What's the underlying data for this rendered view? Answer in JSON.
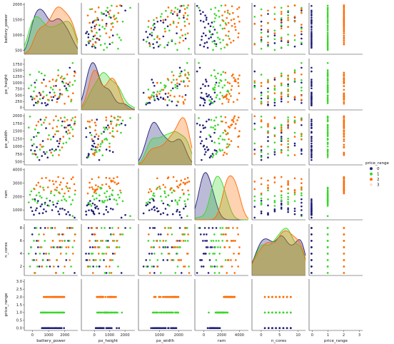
{
  "chart_data": {
    "type": "scatter",
    "subtype": "pairplot",
    "variables": [
      "battery_power",
      "px_height",
      "px_width",
      "ram",
      "n_cores",
      "price_range"
    ],
    "ticks": {
      "battery_power": {
        "values": [
          500,
          1000,
          1500,
          2000
        ],
        "labels": [
          "500",
          "1000",
          "1500",
          "2000"
        ],
        "lim": [
          380,
          2050
        ]
      },
      "px_height": {
        "values": [
          0,
          250,
          500,
          750,
          1000,
          1250,
          1500,
          1750
        ],
        "labels": [
          "0",
          "250",
          "500",
          "750",
          "1000",
          "1250",
          "1500",
          "1750"
        ],
        "lim": [
          -90,
          1980
        ]
      },
      "px_width": {
        "values": [
          500,
          750,
          1000,
          1250,
          1500,
          1750,
          2000
        ],
        "labels": [
          "500",
          "750",
          "1000",
          "1250",
          "1500",
          "1750",
          "2000"
        ],
        "lim": [
          400,
          2080
        ]
      },
      "ram": {
        "values": [
          1000,
          2000,
          3000,
          4000
        ],
        "labels": [
          "1000",
          "2000",
          "3000",
          "4000"
        ],
        "lim": [
          280,
          4100
        ]
      },
      "n_cores": {
        "values": [
          2,
          4,
          6,
          8
        ],
        "labels": [
          "2",
          "4",
          "6",
          "8"
        ],
        "lim": [
          0.6,
          8.6
        ]
      },
      "price_range": {
        "values": [
          0.0,
          0.5,
          1.0,
          1.5,
          2.0,
          2.5,
          3.0
        ],
        "labels": [
          "0.0",
          "0.5",
          "1.0",
          "1.5",
          "2.0",
          "2.5",
          "3.0"
        ],
        "lim": [
          -0.15,
          3.15
        ]
      }
    },
    "bottom_ticks": {
      "battery_power": {
        "values": [
          0,
          1000,
          2000
        ],
        "labels": [
          "0",
          "1000",
          "2000"
        ],
        "lim": [
          -500,
          2800
        ]
      },
      "px_height": {
        "values": [
          0,
          1000,
          2000
        ],
        "labels": [
          "0",
          "1000",
          "2000"
        ],
        "lim": [
          -850,
          2650
        ]
      },
      "px_width": {
        "values": [
          1000,
          2000
        ],
        "labels": [
          "1000",
          "2000"
        ],
        "lim": [
          -100,
          2700
        ]
      },
      "ram": {
        "values": [
          0,
          2000,
          4000
        ],
        "labels": [
          "0",
          "2000",
          "4000"
        ],
        "lim": [
          -1000,
          5000
        ]
      },
      "n_cores": {
        "values": [
          0,
          5,
          10
        ],
        "labels": [
          "0",
          "5",
          "10"
        ],
        "lim": [
          -2.5,
          12
        ]
      },
      "price_range": {
        "values": [
          0,
          1,
          2,
          3
        ],
        "labels": [
          "0",
          "1",
          "2",
          "3"
        ],
        "lim": [
          -0.2,
          3.2
        ]
      }
    },
    "hue": "price_range",
    "legend": {
      "title": "price_range",
      "entries": [
        "0",
        "1",
        "2",
        "3"
      ],
      "placement": "right"
    },
    "colors": {
      "0": "#1f1f7a",
      "1": "#3ad62a",
      "2": "#ff6a00",
      "3": "#ffe0d0"
    },
    "records": [
      [
        1950,
        1460,
        1750,
        440,
        1,
        0
      ],
      [
        1890,
        1800,
        1930,
        560,
        8,
        1
      ],
      [
        1800,
        1610,
        1700,
        640,
        8,
        0
      ],
      [
        1750,
        940,
        1690,
        860,
        6,
        0
      ],
      [
        1690,
        780,
        1480,
        700,
        3,
        0
      ],
      [
        1640,
        870,
        1620,
        1020,
        6,
        0
      ],
      [
        1570,
        1050,
        1820,
        1110,
        7,
        0
      ],
      [
        1500,
        560,
        1250,
        1100,
        5,
        0
      ],
      [
        1470,
        410,
        1100,
        700,
        7,
        0
      ],
      [
        1440,
        370,
        1000,
        900,
        2,
        0
      ],
      [
        1410,
        350,
        1180,
        1500,
        5,
        0
      ],
      [
        1370,
        880,
        900,
        1250,
        1,
        0
      ],
      [
        1290,
        430,
        1320,
        1400,
        5,
        0
      ],
      [
        1250,
        300,
        910,
        1000,
        8,
        0
      ],
      [
        1180,
        610,
        880,
        1700,
        2,
        0
      ],
      [
        1110,
        130,
        640,
        1350,
        3,
        0
      ],
      [
        1060,
        90,
        1600,
        900,
        4,
        0
      ],
      [
        1030,
        190,
        760,
        1550,
        8,
        0
      ],
      [
        990,
        1130,
        820,
        1060,
        4,
        0
      ],
      [
        960,
        380,
        1180,
        780,
        3,
        0
      ],
      [
        930,
        180,
        690,
        1430,
        2,
        0
      ],
      [
        890,
        510,
        1880,
        1280,
        8,
        0
      ],
      [
        850,
        600,
        560,
        760,
        2,
        0
      ],
      [
        810,
        250,
        1450,
        1680,
        5,
        0
      ],
      [
        770,
        460,
        980,
        1140,
        6,
        0
      ],
      [
        740,
        200,
        740,
        990,
        4,
        0
      ],
      [
        710,
        1010,
        860,
        1810,
        8,
        0
      ],
      [
        680,
        100,
        1310,
        660,
        3,
        0
      ],
      [
        630,
        330,
        1030,
        930,
        7,
        0
      ],
      [
        590,
        450,
        880,
        1200,
        5,
        0
      ],
      [
        1960,
        1080,
        1820,
        2170,
        7,
        1
      ],
      [
        1890,
        920,
        1560,
        1740,
        5,
        1
      ],
      [
        1840,
        250,
        1630,
        1430,
        2,
        1
      ],
      [
        1790,
        870,
        1260,
        1980,
        6,
        1
      ],
      [
        1730,
        690,
        1420,
        2630,
        8,
        1
      ],
      [
        1690,
        720,
        1130,
        1690,
        4,
        1
      ],
      [
        1640,
        1180,
        1950,
        1800,
        6,
        1
      ],
      [
        1600,
        1000,
        1100,
        2020,
        1,
        1
      ],
      [
        1550,
        1260,
        1680,
        1730,
        5,
        1
      ],
      [
        1490,
        480,
        880,
        2250,
        6,
        1
      ],
      [
        1440,
        1510,
        1850,
        1670,
        7,
        1
      ],
      [
        1390,
        1120,
        1500,
        2470,
        3,
        1
      ],
      [
        1320,
        610,
        860,
        2100,
        5,
        1
      ],
      [
        1270,
        730,
        710,
        1600,
        6,
        1
      ],
      [
        1210,
        810,
        1230,
        2260,
        8,
        1
      ],
      [
        1150,
        300,
        1370,
        1320,
        4,
        1
      ],
      [
        1080,
        500,
        820,
        1870,
        2,
        1
      ],
      [
        1020,
        1300,
        1870,
        1450,
        6,
        1
      ],
      [
        970,
        640,
        1000,
        2670,
        3,
        1
      ],
      [
        920,
        1380,
        1710,
        1930,
        5,
        1
      ],
      [
        870,
        350,
        900,
        2050,
        4,
        1
      ],
      [
        840,
        1440,
        1450,
        2300,
        7,
        1
      ],
      [
        790,
        180,
        650,
        1540,
        2,
        1
      ],
      [
        760,
        1110,
        1340,
        2100,
        8,
        1
      ],
      [
        720,
        820,
        1560,
        1700,
        1,
        1
      ],
      [
        680,
        660,
        1080,
        2600,
        6,
        1
      ],
      [
        640,
        410,
        760,
        1800,
        3,
        1
      ],
      [
        600,
        900,
        1220,
        2400,
        5,
        1
      ],
      [
        560,
        1330,
        1980,
        2150,
        2,
        1
      ],
      [
        520,
        780,
        1620,
        1580,
        4,
        1
      ],
      [
        1970,
        1410,
        1960,
        2460,
        7,
        2
      ],
      [
        1940,
        1280,
        1720,
        2930,
        6,
        2
      ],
      [
        1900,
        580,
        1340,
        3440,
        4,
        2
      ],
      [
        1850,
        320,
        1860,
        3310,
        8,
        2
      ],
      [
        1800,
        1020,
        1440,
        2630,
        3,
        2
      ],
      [
        1760,
        450,
        1530,
        2420,
        5,
        2
      ],
      [
        1720,
        1340,
        1870,
        3000,
        8,
        2
      ],
      [
        1690,
        980,
        1620,
        2760,
        5,
        2
      ],
      [
        1640,
        160,
        1820,
        2240,
        2,
        2
      ],
      [
        1600,
        1160,
        1320,
        3370,
        7,
        2
      ],
      [
        1560,
        530,
        970,
        2560,
        6,
        2
      ],
      [
        1520,
        1200,
        1930,
        3060,
        4,
        2
      ],
      [
        1490,
        720,
        1180,
        2880,
        6,
        2
      ],
      [
        1460,
        410,
        720,
        2320,
        7,
        2
      ],
      [
        1440,
        1300,
        1500,
        3460,
        5,
        2
      ],
      [
        1400,
        230,
        1650,
        2680,
        3,
        2
      ],
      [
        1370,
        1070,
        1990,
        3120,
        1,
        2
      ],
      [
        1340,
        490,
        1400,
        2520,
        8,
        2
      ],
      [
        1300,
        870,
        1860,
        2930,
        2,
        2
      ],
      [
        1270,
        1130,
        1600,
        3160,
        6,
        2
      ],
      [
        1220,
        430,
        800,
        2400,
        5,
        2
      ],
      [
        1170,
        1060,
        1740,
        3200,
        3,
        2
      ],
      [
        1120,
        320,
        1240,
        2700,
        8,
        2
      ],
      [
        1060,
        870,
        1950,
        3400,
        4,
        2
      ],
      [
        990,
        440,
        1780,
        2500,
        7,
        2
      ],
      [
        930,
        1000,
        990,
        3370,
        2,
        2
      ],
      [
        880,
        560,
        1060,
        2750,
        5,
        2
      ],
      [
        820,
        230,
        1810,
        3040,
        6,
        2
      ],
      [
        760,
        470,
        1690,
        2850,
        3,
        2
      ],
      [
        700,
        360,
        760,
        2560,
        1,
        2
      ]
    ]
  }
}
